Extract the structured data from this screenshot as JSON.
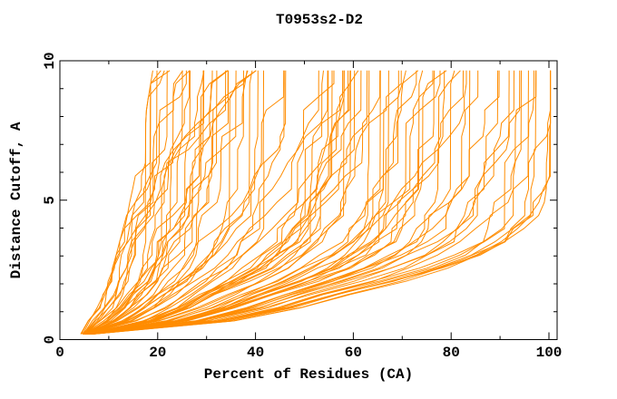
{
  "title": "T0953s2-D2",
  "axes": {
    "xlabel": "Percent of Residues (CA)",
    "ylabel": "Distance Cutoff, A",
    "x_tick_labels": [
      "0",
      "20",
      "40",
      "60",
      "80",
      "100"
    ],
    "x_ticks_major": [
      0,
      20,
      40,
      60,
      80,
      100
    ],
    "x_ticks_minor": [
      10,
      30,
      50,
      70,
      90
    ],
    "y_tick_labels": [
      "0",
      "5",
      "10"
    ],
    "y_ticks_major": [
      0,
      5,
      10
    ],
    "y_ticks_minor": [
      1,
      2,
      3,
      4,
      6,
      7,
      8,
      9
    ],
    "xlim": [
      0,
      100
    ],
    "ylim": [
      0,
      10
    ]
  },
  "colors": {
    "curve": "#ff8c00",
    "frame": "#000000",
    "background": "#ffffff",
    "text": "#000000"
  },
  "chart_data": {
    "type": "line",
    "title": "T0953s2-D2",
    "xlabel": "Percent of Residues (CA)",
    "ylabel": "Distance Cutoff, A",
    "xlim": [
      0,
      100
    ],
    "ylim": [
      0,
      10
    ],
    "grid": false,
    "legend": false,
    "series_color": "#ff8c00",
    "series_count": 85,
    "left_envelope": [
      [
        4.8,
        0.2
      ],
      [
        6.5,
        0.6
      ],
      [
        8.5,
        1.1
      ],
      [
        10.5,
        1.9
      ],
      [
        12,
        2.7
      ],
      [
        13.5,
        3.7
      ],
      [
        15,
        4.7
      ],
      [
        16,
        5.5
      ],
      [
        17,
        6.4
      ],
      [
        18,
        7.4
      ],
      [
        19,
        8.6
      ],
      [
        20,
        9.65
      ]
    ],
    "right_envelope": [
      [
        6.5,
        0.2
      ],
      [
        18,
        0.3
      ],
      [
        30,
        0.5
      ],
      [
        40,
        0.85
      ],
      [
        50,
        1.2
      ],
      [
        60,
        1.7
      ],
      [
        70,
        2.1
      ],
      [
        80,
        2.6
      ],
      [
        88,
        3.1
      ],
      [
        93,
        3.6
      ],
      [
        96.5,
        4.3
      ],
      [
        99,
        5.3
      ],
      [
        100,
        6.6
      ],
      [
        100,
        9.65
      ]
    ],
    "curve_generation": {
      "seed": 11,
      "count": 85,
      "points_per_curve": 21,
      "y_start": 0.2,
      "y_end": 9.65,
      "spread_exponent": 1.25,
      "noise_decay": 0.8,
      "noise_scale": 0.5,
      "noise_base": 1.0,
      "noise_per_y": 0.8,
      "start_jitter": 0.08
    }
  }
}
